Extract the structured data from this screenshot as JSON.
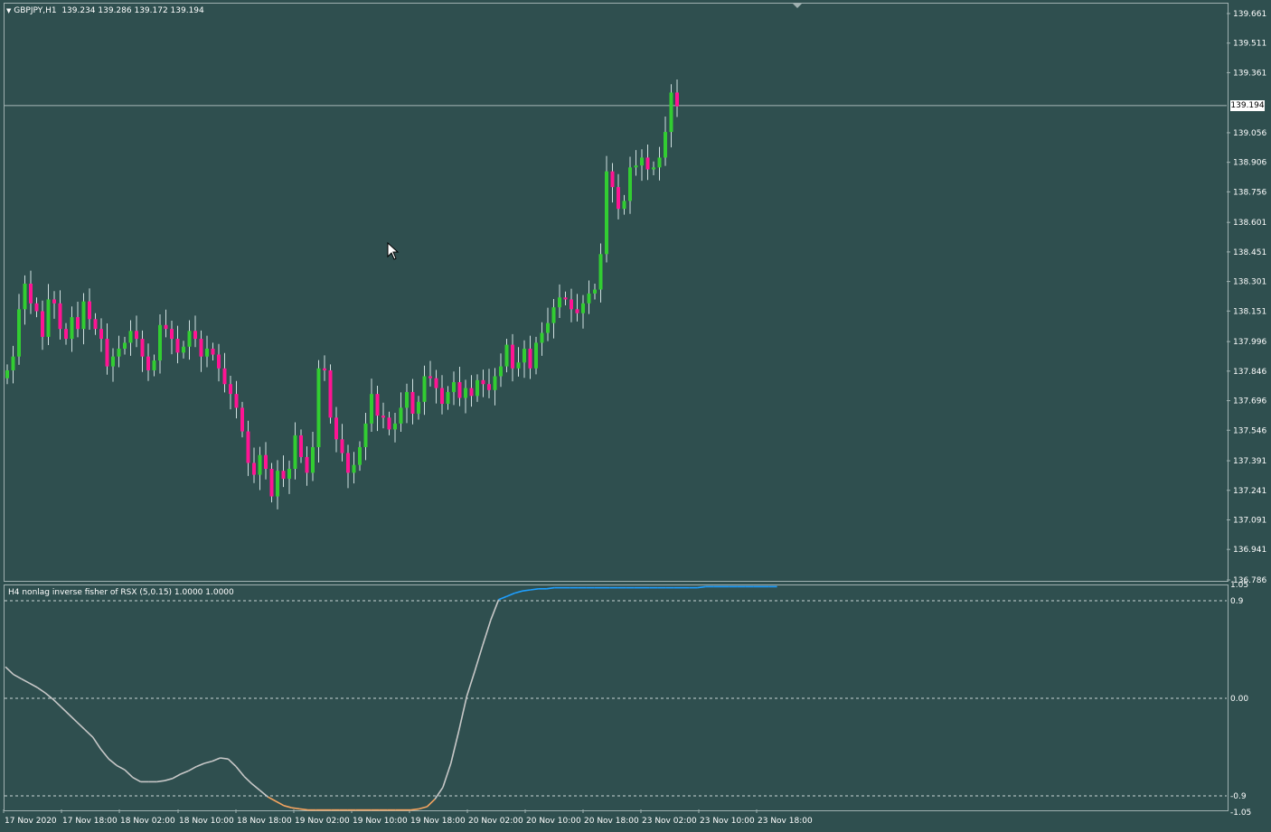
{
  "chart": {
    "symbol_label": "GBPJPY,H1",
    "ohlc_text": "139.234 139.286 139.172 139.194",
    "current_price": "139.194",
    "price_axis": [
      "139.661",
      "139.511",
      "139.361",
      "139.056",
      "138.906",
      "138.756",
      "138.601",
      "138.451",
      "138.301",
      "138.151",
      "137.996",
      "137.846",
      "137.696",
      "137.546",
      "137.391",
      "137.241",
      "137.091",
      "136.941",
      "136.786"
    ],
    "time_axis": [
      "17 Nov 2020",
      "17 Nov 18:00",
      "18 Nov 02:00",
      "18 Nov 10:00",
      "18 Nov 18:00",
      "19 Nov 02:00",
      "19 Nov 10:00",
      "19 Nov 18:00",
      "20 Nov 02:00",
      "20 Nov 10:00",
      "20 Nov 18:00",
      "23 Nov 02:00",
      "23 Nov 10:00",
      "23 Nov 18:00"
    ],
    "colors": {
      "background": "#2f4f4f",
      "bull": "#32cd32",
      "bear": "#ff1493",
      "wick": "#cfe0e0",
      "indicator_neutral": "#c8c8c8",
      "indicator_up": "#1e9fff",
      "indicator_down": "#f4a460"
    }
  },
  "indicator": {
    "title": "H4 nonlag inverse fisher of RSX (5,0.15) 1.0000 1.0000",
    "axis": [
      "1.05",
      "0.9",
      "0.00",
      "-0.9",
      "-1.05"
    ]
  },
  "chart_data": [
    {
      "type": "candlestick",
      "title": "GBPJPY,H1",
      "ylim": [
        136.786,
        139.661
      ],
      "y_ticks": [
        139.661,
        139.511,
        139.361,
        139.056,
        138.906,
        138.756,
        138.601,
        138.451,
        138.301,
        138.151,
        137.996,
        137.846,
        137.696,
        137.546,
        137.391,
        137.241,
        137.091,
        136.941,
        136.786
      ],
      "x_tick_labels": [
        "17 Nov 2020",
        "17 Nov 18:00",
        "18 Nov 02:00",
        "18 Nov 10:00",
        "18 Nov 18:00",
        "19 Nov 02:00",
        "19 Nov 10:00",
        "19 Nov 18:00",
        "20 Nov 02:00",
        "20 Nov 10:00",
        "20 Nov 18:00",
        "23 Nov 02:00",
        "23 Nov 10:00",
        "23 Nov 18:00"
      ],
      "last_price": 139.194,
      "closes": [
        137.85,
        137.92,
        138.16,
        138.29,
        138.19,
        138.15,
        138.02,
        138.21,
        138.19,
        138.06,
        138.01,
        138.12,
        138.06,
        138.2,
        138.11,
        138.06,
        138.01,
        137.87,
        137.92,
        137.96,
        137.99,
        138.05,
        138.01,
        137.92,
        137.85,
        137.9,
        138.08,
        138.06,
        138.01,
        137.94,
        137.97,
        138.05,
        138.01,
        137.92,
        137.96,
        137.93,
        137.86,
        137.78,
        137.73,
        137.66,
        137.54,
        137.38,
        137.32,
        137.42,
        137.35,
        137.21,
        137.34,
        137.3,
        137.35,
        137.52,
        137.41,
        137.33,
        137.46,
        137.86,
        137.85,
        137.61,
        137.5,
        137.43,
        137.33,
        137.37,
        137.46,
        137.58,
        137.73,
        137.62,
        137.61,
        137.55,
        137.58,
        137.66,
        137.74,
        137.63,
        137.69,
        137.82,
        137.81,
        137.76,
        137.68,
        137.74,
        137.79,
        137.71,
        137.76,
        137.72,
        137.8,
        137.78,
        137.75,
        137.82,
        137.87,
        137.98,
        137.86,
        137.89,
        137.96,
        137.86,
        137.99,
        138.04,
        138.09,
        138.17,
        138.22,
        138.21,
        138.16,
        138.14,
        138.19,
        138.24,
        138.26,
        138.44,
        138.86,
        138.78,
        138.67,
        138.71,
        138.88,
        138.89,
        138.93,
        138.87,
        138.88,
        138.93,
        139.06,
        139.26,
        139.19
      ]
    },
    {
      "type": "line",
      "title": "H4 nonlag inverse fisher of RSX (5,0.15) 1.0000 1.0000",
      "ylim": [
        -1.05,
        1.05
      ],
      "reference_levels": [
        0.9,
        0.0,
        -0.9
      ],
      "values": [
        0.29,
        0.22,
        0.18,
        0.14,
        0.1,
        0.05,
        -0.01,
        -0.08,
        -0.15,
        -0.22,
        -0.29,
        -0.36,
        -0.47,
        -0.56,
        -0.62,
        -0.66,
        -0.73,
        -0.77,
        -0.77,
        -0.77,
        -0.76,
        -0.74,
        -0.7,
        -0.67,
        -0.63,
        -0.6,
        -0.58,
        -0.55,
        -0.56,
        -0.63,
        -0.72,
        -0.79,
        -0.85,
        -0.91,
        -0.95,
        -0.99,
        -1.01,
        -1.02,
        -1.03,
        -1.03,
        -1.03,
        -1.03,
        -1.03,
        -1.03,
        -1.03,
        -1.03,
        -1.03,
        -1.03,
        -1.03,
        -1.03,
        -1.03,
        -1.03,
        -1.02,
        -1.0,
        -0.93,
        -0.82,
        -0.6,
        -0.3,
        0.02,
        0.25,
        0.49,
        0.72,
        0.91,
        0.94,
        0.97,
        0.99,
        1.0,
        1.01,
        1.01,
        1.02,
        1.02,
        1.02,
        1.02,
        1.02,
        1.02,
        1.02,
        1.02,
        1.02,
        1.02,
        1.02,
        1.02,
        1.02,
        1.02,
        1.02,
        1.02,
        1.02,
        1.02,
        1.02,
        1.03,
        1.03,
        1.03,
        1.03,
        1.03,
        1.03,
        1.03,
        1.03,
        1.03,
        1.03
      ]
    }
  ]
}
